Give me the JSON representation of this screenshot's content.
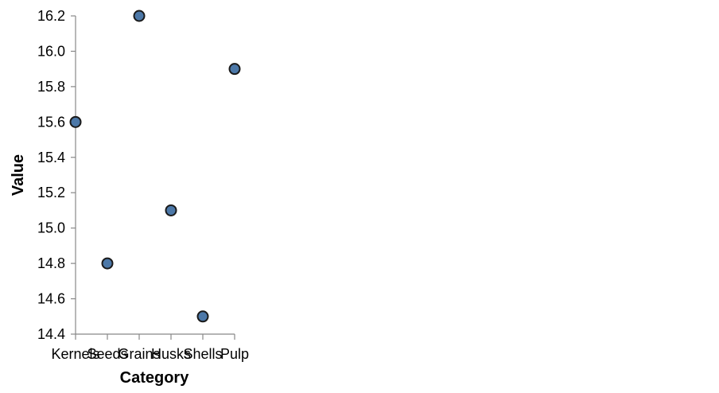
{
  "chart_data": {
    "type": "scatter",
    "title": "",
    "xlabel": "Category",
    "ylabel": "Value",
    "categories": [
      "Kernels",
      "Seeds",
      "Grains",
      "Husks",
      "Shells",
      "Pulp"
    ],
    "values": [
      15.6,
      14.8,
      16.2,
      15.1,
      14.5,
      15.9
    ],
    "ylim": [
      14.4,
      16.2
    ],
    "yticks": [
      "14.4",
      "14.6",
      "14.8",
      "15.0",
      "15.2",
      "15.4",
      "15.6",
      "15.8",
      "16.0",
      "16.2"
    ],
    "grid": false,
    "point_fill": "#4c78a8",
    "point_stroke": "#1a1a1a"
  }
}
